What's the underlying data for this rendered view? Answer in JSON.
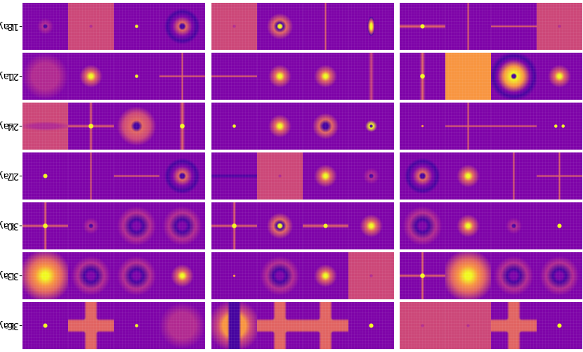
{
  "figure": {
    "rows": [
      {
        "label_line1": "Layer",
        "label_line2": "16-18",
        "panels": [
          [
            "ring",
            "faint-bg",
            "dot-hot",
            "ring-dark"
          ],
          [
            "faint-bg",
            "diamond-dot",
            "cross-v",
            "oval-v"
          ],
          [
            "cross-h-hot",
            "cross-v",
            "cross-h",
            "faint-bg"
          ]
        ]
      },
      {
        "label_line1": "Layer",
        "label_line2": "19-21",
        "panels": [
          [
            "blob-soft",
            "blob-diamond",
            "dot-hot",
            "cross-both"
          ],
          [
            "cross-h",
            "blob-diamond",
            "blob-diamond",
            "cross-v-soft"
          ],
          [
            "cross-v-hot",
            "warm-bg",
            "halo-hot",
            "blob-diamond"
          ]
        ]
      },
      {
        "label_line1": "Layer",
        "label_line2": "22-24",
        "panels": [
          [
            "soft-warm",
            "cross-both-hot",
            "halo-dark",
            "cross-v-hot"
          ],
          [
            "dot-hot",
            "blob-diamond",
            "blob-square",
            "dot-ring"
          ],
          [
            "dot-small",
            "cross-both",
            "cross-h",
            "twin-dots"
          ]
        ]
      },
      {
        "label_line1": "Layer",
        "label_line2": "25-27",
        "panels": [
          [
            "dot-yellow",
            "cross-v",
            "cross-h",
            "ring-dark"
          ],
          [
            "cross-h-dark",
            "faint-bg",
            "blob-diamond",
            "ring"
          ],
          [
            "ring-dark",
            "blob-diamond",
            "cross-v",
            "cross-both"
          ]
        ]
      },
      {
        "label_line1": "Layer",
        "label_line2": "28-30",
        "panels": [
          [
            "cross-both-hot",
            "ring",
            "diamond-grid",
            "diamond-grid"
          ],
          [
            "cross-both-hot",
            "diamond-dot",
            "cross-h-hot",
            "blob-diamond"
          ],
          [
            "diamond-grid",
            "blob-diamond",
            "ring",
            "dot-yellow"
          ]
        ]
      },
      {
        "label_line1": "Layer",
        "label_line2": "31-33",
        "panels": [
          [
            "warm-blob",
            "diamond-grid",
            "diamond-grid",
            "blob-diamond"
          ],
          [
            "dot-small",
            "diamond-grid",
            "blob-diamond",
            "faint-bg"
          ],
          [
            "cross-both-hot",
            "warm-blob",
            "diamond-grid",
            "diamond-grid"
          ]
        ]
      },
      {
        "label_line1": "Layer",
        "label_line2": "34-36",
        "panels": [
          [
            "dot-yellow",
            "plus-hot",
            "dot-hot",
            "blob-soft"
          ],
          [
            "plus-warm",
            "plus-hot",
            "plus-hot",
            "dot-yellow"
          ],
          [
            "faint-bg",
            "faint-bg",
            "plus-hot",
            "dot-yellow"
          ]
        ]
      }
    ],
    "colors": {
      "background": "#ffffff",
      "colormap": "plasma",
      "cmap_dark": "#0d0887",
      "cmap_mid": "#cc4778",
      "cmap_bright": "#f0f921"
    }
  }
}
